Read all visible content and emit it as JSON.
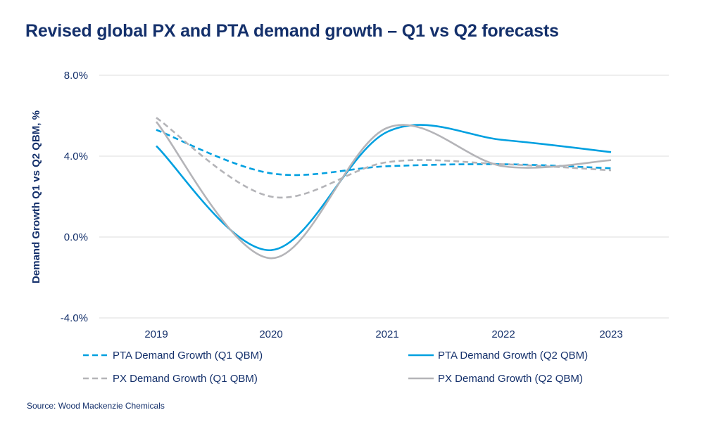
{
  "title": "Revised global PX and PTA demand growth – Q1 vs Q2 forecasts",
  "source": "Source: Wood Mackenzie Chemicals",
  "chart_data": {
    "type": "line",
    "title": "Revised global PX and PTA demand growth – Q1 vs Q2 forecasts",
    "xlabel": "",
    "ylabel": "Demand Growth Q1 vs Q2 QBM, %",
    "categories": [
      "2019",
      "2020",
      "2021",
      "2022",
      "2023"
    ],
    "ylim": [
      -4,
      8
    ],
    "yticks": [
      8,
      4,
      0,
      -4
    ],
    "ytick_labels": [
      "8.0%",
      "4.0%",
      "0.0%",
      "-4.0%"
    ],
    "grid": "horizontal",
    "smooth": true,
    "legend": "bottom",
    "series": [
      {
        "name": "PTA Demand Growth (Q1 QBM)",
        "color": "#00a0e0",
        "dash": true,
        "values": [
          5.3,
          3.15,
          3.5,
          3.6,
          3.4
        ]
      },
      {
        "name": "PTA Demand Growth (Q2 QBM)",
        "color": "#00a0e0",
        "dash": false,
        "values": [
          4.5,
          -0.65,
          5.2,
          4.8,
          4.2
        ]
      },
      {
        "name": "PX Demand Growth (Q1 QBM)",
        "color": "#b4b4b8",
        "dash": true,
        "values": [
          5.9,
          2.0,
          3.7,
          3.6,
          3.3
        ]
      },
      {
        "name": "PX Demand Growth (Q2 QBM)",
        "color": "#b4b4b8",
        "dash": false,
        "values": [
          5.7,
          -1.05,
          5.4,
          3.5,
          3.8
        ]
      }
    ]
  }
}
